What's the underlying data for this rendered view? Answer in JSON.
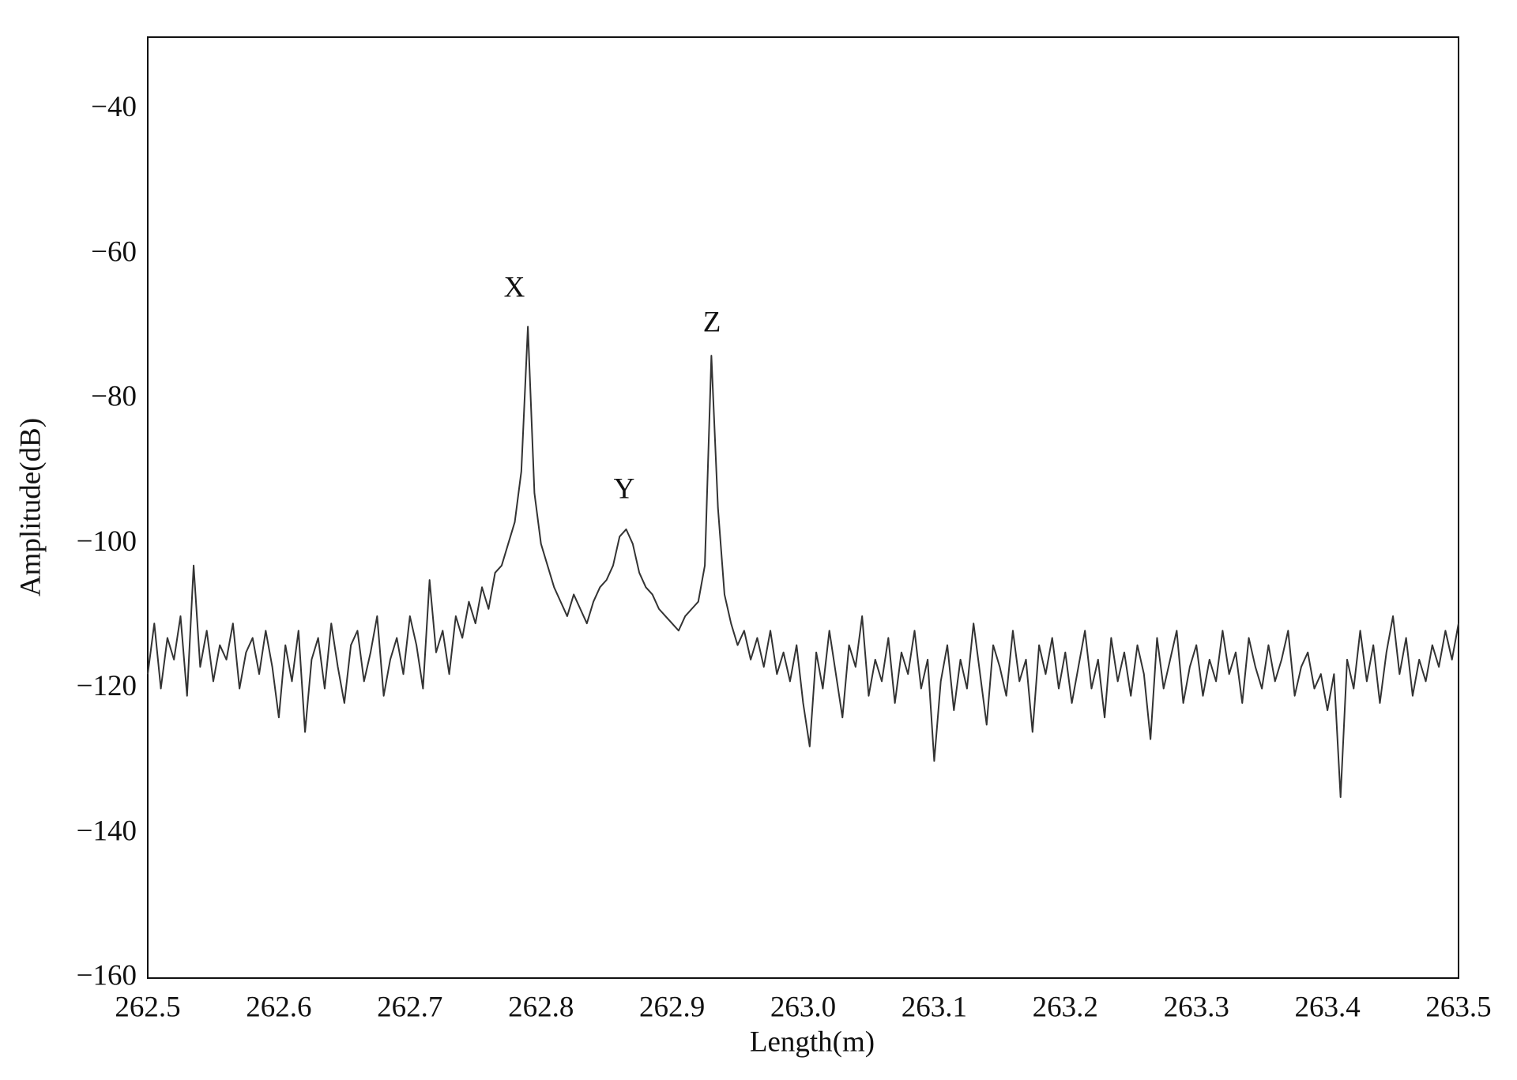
{
  "chart_data": {
    "type": "line",
    "xlabel": "Length(m)",
    "ylabel": "Amplitude(dB)",
    "annotations": [
      "X",
      "Y",
      "Z"
    ],
    "x": [
      262.5,
      262.505,
      262.51,
      262.515,
      262.52,
      262.525,
      262.53,
      262.535,
      262.54,
      262.545,
      262.55,
      262.555,
      262.56,
      262.565,
      262.57,
      262.575,
      262.58,
      262.585,
      262.59,
      262.595,
      262.6,
      262.605,
      262.61,
      262.615,
      262.62,
      262.625,
      262.63,
      262.635,
      262.64,
      262.645,
      262.65,
      262.655,
      262.66,
      262.665,
      262.67,
      262.675,
      262.68,
      262.685,
      262.69,
      262.695,
      262.7,
      262.705,
      262.71,
      262.715,
      262.72,
      262.725,
      262.73,
      262.735,
      262.74,
      262.745,
      262.75,
      262.755,
      262.76,
      262.765,
      262.77,
      262.775,
      262.78,
      262.785,
      262.79,
      262.795,
      262.8,
      262.805,
      262.81,
      262.815,
      262.82,
      262.825,
      262.83,
      262.835,
      262.84,
      262.845,
      262.85,
      262.855,
      262.86,
      262.865,
      262.87,
      262.875,
      262.88,
      262.885,
      262.89,
      262.895,
      262.9,
      262.905,
      262.91,
      262.915,
      262.92,
      262.925,
      262.93,
      262.935,
      262.94,
      262.945,
      262.95,
      262.955,
      262.96,
      262.965,
      262.97,
      262.975,
      262.98,
      262.985,
      262.99,
      262.995,
      263.0,
      263.005,
      263.01,
      263.015,
      263.02,
      263.025,
      263.03,
      263.035,
      263.04,
      263.045,
      263.05,
      263.055,
      263.06,
      263.065,
      263.07,
      263.075,
      263.08,
      263.085,
      263.09,
      263.095,
      263.1,
      263.105,
      263.11,
      263.115,
      263.12,
      263.125,
      263.13,
      263.135,
      263.14,
      263.145,
      263.15,
      263.155,
      263.16,
      263.165,
      263.17,
      263.175,
      263.18,
      263.185,
      263.19,
      263.195,
      263.2,
      263.205,
      263.21,
      263.215,
      263.22,
      263.225,
      263.23,
      263.235,
      263.24,
      263.245,
      263.25,
      263.255,
      263.26,
      263.265,
      263.27,
      263.275,
      263.28,
      263.285,
      263.29,
      263.295,
      263.3,
      263.305,
      263.31,
      263.315,
      263.32,
      263.325,
      263.33,
      263.335,
      263.34,
      263.345,
      263.35,
      263.355,
      263.36,
      263.365,
      263.37,
      263.375,
      263.38,
      263.385,
      263.39,
      263.395,
      263.4,
      263.405,
      263.41,
      263.415,
      263.42,
      263.425,
      263.43,
      263.435,
      263.44,
      263.445,
      263.45,
      263.455,
      263.46,
      263.465,
      263.47,
      263.475,
      263.48,
      263.485,
      263.49,
      263.495,
      263.5
    ],
    "series": [
      {
        "color": "#333333",
        "values": [
          -118,
          -111,
          -120,
          -113,
          -116,
          -110,
          -121,
          -103,
          -117,
          -112,
          -119,
          -114,
          -116,
          -111,
          -120,
          -115,
          -113,
          -118,
          -112,
          -117,
          -124,
          -114,
          -119,
          -112,
          -126,
          -116,
          -113,
          -120,
          -111,
          -117,
          -122,
          -114,
          -112,
          -119,
          -115,
          -110,
          -121,
          -116,
          -113,
          -118,
          -110,
          -114,
          -120,
          -105,
          -115,
          -112,
          -118,
          -110,
          -113,
          -108,
          -111,
          -106,
          -109,
          -104,
          -103,
          -100,
          -97,
          -90,
          -70,
          -93,
          -100,
          -103,
          -106,
          -108,
          -110,
          -107,
          -109,
          -111,
          -108,
          -106,
          -105,
          -103,
          -99,
          -98,
          -100,
          -104,
          -106,
          -107,
          -109,
          -110,
          -111,
          -112,
          -110,
          -109,
          -108,
          -103,
          -74,
          -95,
          -107,
          -111,
          -114,
          -112,
          -116,
          -113,
          -117,
          -112,
          -118,
          -115,
          -119,
          -114,
          -122,
          -128,
          -115,
          -120,
          -112,
          -118,
          -124,
          -114,
          -117,
          -110,
          -121,
          -116,
          -119,
          -113,
          -122,
          -115,
          -118,
          -112,
          -120,
          -116,
          -130,
          -119,
          -114,
          -123,
          -116,
          -120,
          -111,
          -118,
          -125,
          -114,
          -117,
          -121,
          -112,
          -119,
          -116,
          -126,
          -114,
          -118,
          -113,
          -120,
          -115,
          -122,
          -117,
          -112,
          -120,
          -116,
          -124,
          -113,
          -119,
          -115,
          -121,
          -114,
          -118,
          -127,
          -113,
          -120,
          -116,
          -112,
          -122,
          -117,
          -114,
          -121,
          -116,
          -119,
          -112,
          -118,
          -115,
          -122,
          -113,
          -117,
          -120,
          -114,
          -119,
          -116,
          -112,
          -121,
          -117,
          -115,
          -120,
          -118,
          -123,
          -118,
          -135,
          -116,
          -120,
          -112,
          -119,
          -114,
          -122,
          -115,
          -110,
          -118,
          -113,
          -121,
          -116,
          -119,
          -114,
          -117,
          -112,
          -116,
          -111
        ]
      }
    ],
    "xlim": [
      262.5,
      263.5
    ],
    "xticks": [
      262.5,
      262.6,
      262.7,
      262.8,
      262.9,
      {
        "value": 263.0,
        "label": "263.0"
      },
      263.1,
      263.2,
      263.3,
      263.4,
      263.5
    ],
    "ylim": [
      -160,
      -30
    ],
    "yticks": [
      {
        "value": -40,
        "label": "−40"
      },
      {
        "value": -60,
        "label": "−60"
      },
      {
        "value": -80,
        "label": "−80"
      },
      {
        "value": -100,
        "label": "−100"
      },
      {
        "value": -120,
        "label": "−120"
      },
      {
        "value": -140,
        "label": "−140"
      },
      {
        "value": -160,
        "label": "−160"
      }
    ],
    "grid": false
  }
}
